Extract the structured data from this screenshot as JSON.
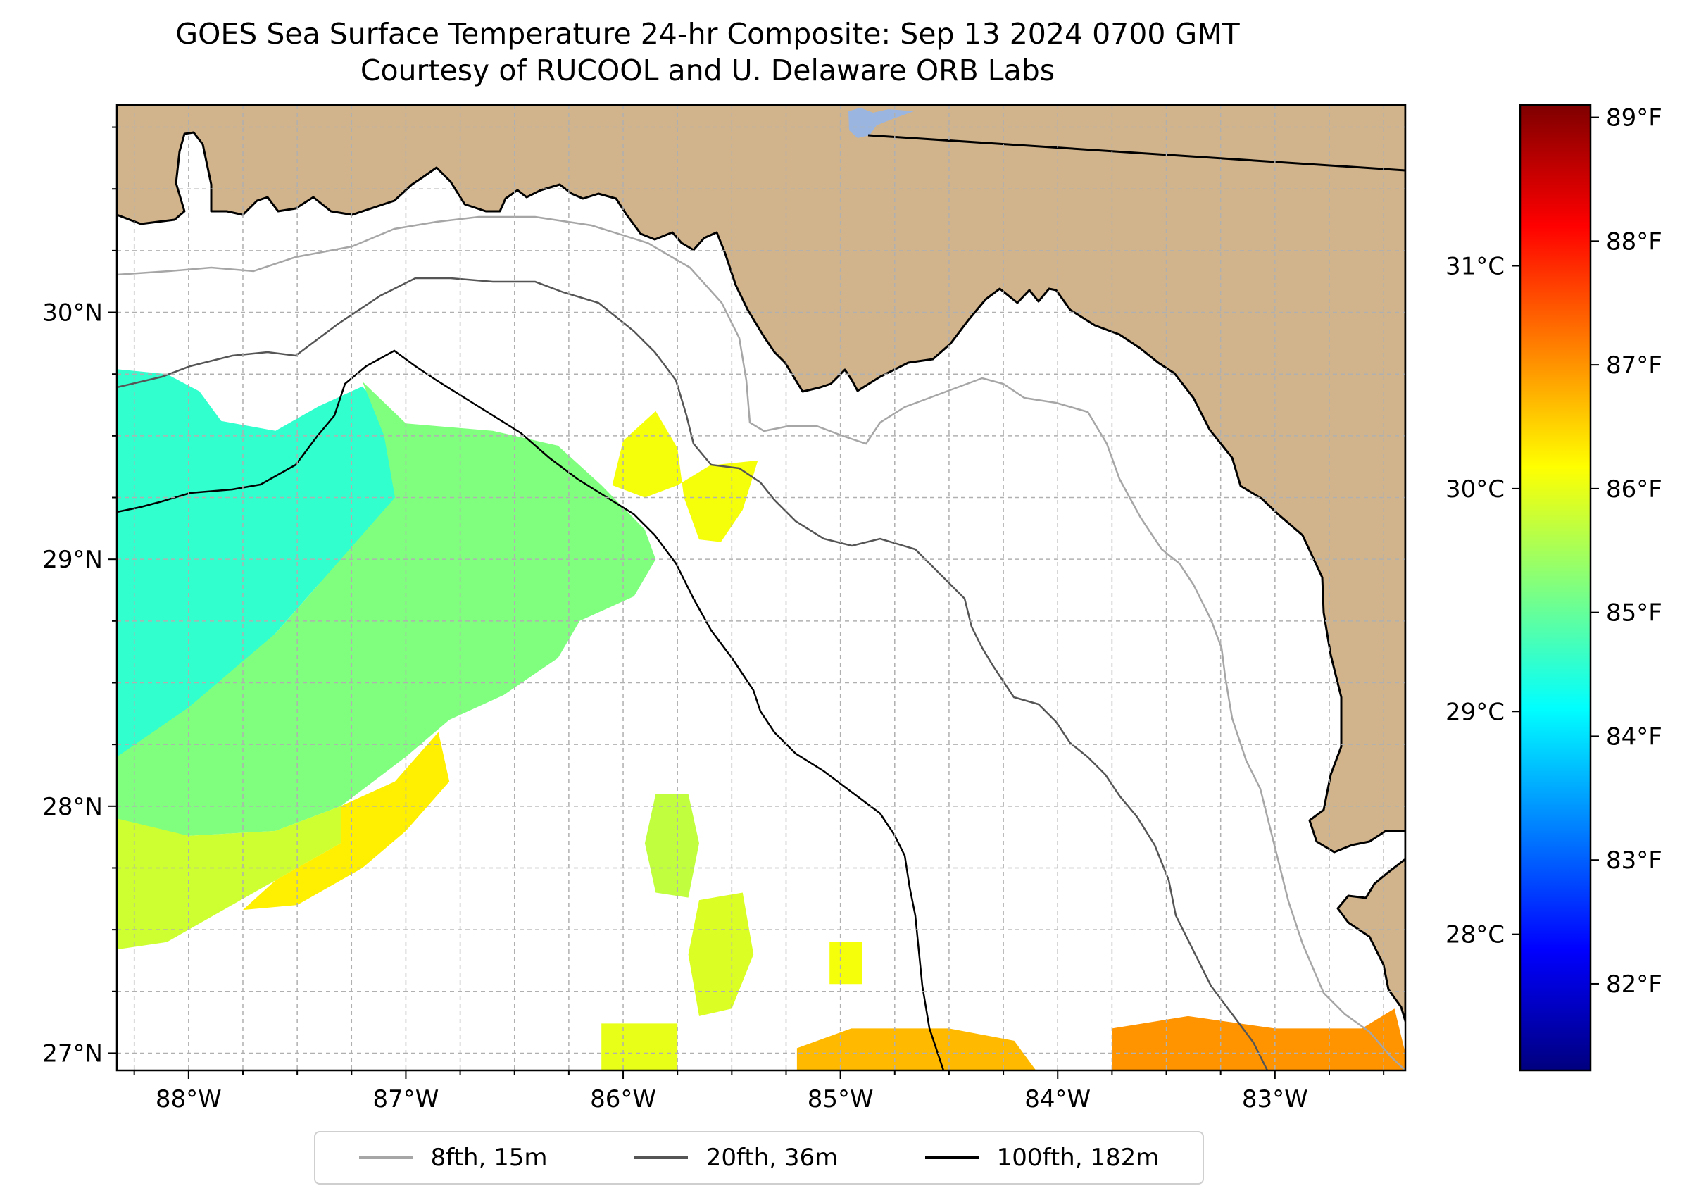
{
  "title": {
    "line1": "GOES Sea Surface Temperature 24-hr Composite: Sep 13 2024 0700 GMT",
    "line2": "Courtesy of RUCOOL and U. Delaware ORB Labs"
  },
  "map": {
    "lon_range": [
      -88.33,
      -82.4
    ],
    "lat_range": [
      26.93,
      30.84
    ],
    "lon_ticks": [
      {
        "value": -88,
        "label": "88°W"
      },
      {
        "value": -87,
        "label": "87°W"
      },
      {
        "value": -86,
        "label": "86°W"
      },
      {
        "value": -85,
        "label": "85°W"
      },
      {
        "value": -84,
        "label": "84°W"
      },
      {
        "value": -83,
        "label": "83°W"
      }
    ],
    "lat_ticks": [
      {
        "value": 27,
        "label": "27°N"
      },
      {
        "value": 28,
        "label": "28°N"
      },
      {
        "value": 29,
        "label": "29°N"
      },
      {
        "value": 30,
        "label": "30°N"
      }
    ],
    "grid": true,
    "land_color": "#d2b48c",
    "lake_color": "#9ab5e0"
  },
  "colorbar": {
    "celsius_ticks": [
      {
        "value": 31,
        "label": "31°C"
      },
      {
        "value": 30,
        "label": "30°C"
      },
      {
        "value": 29,
        "label": "29°C"
      },
      {
        "value": 28,
        "label": "28°C"
      }
    ],
    "fahrenheit_ticks": [
      {
        "value": 89,
        "label": "89°F"
      },
      {
        "value": 88,
        "label": "88°F"
      },
      {
        "value": 87,
        "label": "87°F"
      },
      {
        "value": 86,
        "label": "86°F"
      },
      {
        "value": 85,
        "label": "85°F"
      },
      {
        "value": 84,
        "label": "84°F"
      },
      {
        "value": 83,
        "label": "83°F"
      },
      {
        "value": 82,
        "label": "82°F"
      }
    ],
    "range_f": [
      81.3,
      89.1
    ],
    "colormap": "jet"
  },
  "legend": {
    "placement": "bottom-center",
    "items": [
      {
        "label": "8fth, 15m",
        "color": "#a6a6a6"
      },
      {
        "label": "20fth, 36m",
        "color": "#555555"
      },
      {
        "label": "100fth, 182m",
        "color": "#000000"
      }
    ]
  },
  "sst_patches": [
    {
      "temp_f": 84.6,
      "points": [
        [
          -88.33,
          29.77
        ],
        [
          -88.1,
          29.75
        ],
        [
          -87.95,
          29.68
        ],
        [
          -87.85,
          29.56
        ],
        [
          -87.6,
          29.52
        ],
        [
          -87.4,
          29.62
        ],
        [
          -87.2,
          29.7
        ],
        [
          -87.05,
          29.55
        ],
        [
          -86.9,
          29.48
        ],
        [
          -86.6,
          29.5
        ],
        [
          -86.4,
          29.38
        ],
        [
          -86.9,
          29.25
        ],
        [
          -87.1,
          29.1
        ],
        [
          -87.4,
          28.9
        ],
        [
          -87.7,
          28.6
        ],
        [
          -88.0,
          28.35
        ],
        [
          -88.33,
          28.2
        ]
      ]
    },
    {
      "temp_f": 85.2,
      "points": [
        [
          -87.2,
          29.72
        ],
        [
          -87.0,
          29.55
        ],
        [
          -86.6,
          29.52
        ],
        [
          -86.3,
          29.46
        ],
        [
          -86.1,
          29.3
        ],
        [
          -85.9,
          29.12
        ],
        [
          -85.85,
          29.0
        ],
        [
          -85.95,
          28.85
        ],
        [
          -86.2,
          28.75
        ],
        [
          -86.3,
          28.6
        ],
        [
          -86.55,
          28.45
        ],
        [
          -86.8,
          28.35
        ],
        [
          -87.0,
          28.2
        ],
        [
          -87.3,
          28.0
        ],
        [
          -87.6,
          27.9
        ],
        [
          -88.0,
          27.88
        ],
        [
          -88.33,
          27.9
        ],
        [
          -88.33,
          28.2
        ],
        [
          -88.0,
          28.4
        ],
        [
          -87.6,
          28.7
        ],
        [
          -87.3,
          29.0
        ],
        [
          -87.05,
          29.25
        ],
        [
          -87.1,
          29.5
        ]
      ]
    },
    {
      "temp_f": 85.8,
      "points": [
        [
          -88.33,
          27.95
        ],
        [
          -88.0,
          27.88
        ],
        [
          -87.6,
          27.9
        ],
        [
          -87.3,
          28.0
        ],
        [
          -87.05,
          28.1
        ],
        [
          -86.85,
          28.3
        ],
        [
          -86.95,
          28.05
        ],
        [
          -87.3,
          27.85
        ],
        [
          -87.6,
          27.7
        ],
        [
          -87.9,
          27.55
        ],
        [
          -88.1,
          27.45
        ],
        [
          -88.33,
          27.42
        ]
      ]
    },
    {
      "temp_f": 86.3,
      "points": [
        [
          -87.3,
          28.0
        ],
        [
          -87.05,
          28.1
        ],
        [
          -86.85,
          28.3
        ],
        [
          -86.8,
          28.1
        ],
        [
          -87.0,
          27.9
        ],
        [
          -87.2,
          27.75
        ],
        [
          -87.5,
          27.6
        ],
        [
          -87.75,
          27.58
        ],
        [
          -87.6,
          27.7
        ],
        [
          -87.3,
          27.85
        ]
      ]
    },
    {
      "temp_f": 86.1,
      "points": [
        [
          -86.0,
          29.48
        ],
        [
          -85.85,
          29.6
        ],
        [
          -85.75,
          29.45
        ],
        [
          -85.72,
          29.25
        ],
        [
          -85.65,
          29.08
        ],
        [
          -85.55,
          29.07
        ],
        [
          -85.45,
          29.2
        ],
        [
          -85.38,
          29.4
        ],
        [
          -85.6,
          29.38
        ],
        [
          -85.75,
          29.3
        ],
        [
          -85.9,
          29.25
        ],
        [
          -86.05,
          29.3
        ]
      ]
    },
    {
      "temp_f": 85.7,
      "points": [
        [
          -85.85,
          28.05
        ],
        [
          -85.7,
          28.05
        ],
        [
          -85.65,
          27.85
        ],
        [
          -85.7,
          27.63
        ],
        [
          -85.85,
          27.65
        ],
        [
          -85.9,
          27.85
        ]
      ]
    },
    {
      "temp_f": 85.9,
      "points": [
        [
          -85.65,
          27.62
        ],
        [
          -85.45,
          27.65
        ],
        [
          -85.4,
          27.4
        ],
        [
          -85.5,
          27.18
        ],
        [
          -85.65,
          27.15
        ],
        [
          -85.7,
          27.4
        ]
      ]
    },
    {
      "temp_f": 86.0,
      "points": [
        [
          -86.1,
          27.12
        ],
        [
          -85.75,
          27.12
        ],
        [
          -85.75,
          26.93
        ],
        [
          -86.1,
          26.93
        ]
      ]
    },
    {
      "temp_f": 86.1,
      "points": [
        [
          -85.05,
          27.45
        ],
        [
          -84.9,
          27.45
        ],
        [
          -84.9,
          27.28
        ],
        [
          -85.05,
          27.28
        ]
      ]
    },
    {
      "temp_f": 86.7,
      "points": [
        [
          -85.2,
          27.02
        ],
        [
          -84.95,
          27.1
        ],
        [
          -84.5,
          27.1
        ],
        [
          -84.2,
          27.05
        ],
        [
          -84.1,
          26.93
        ],
        [
          -85.2,
          26.93
        ]
      ]
    },
    {
      "temp_f": 87.0,
      "points": [
        [
          -83.75,
          27.1
        ],
        [
          -83.4,
          27.15
        ],
        [
          -83.0,
          27.1
        ],
        [
          -82.6,
          27.1
        ],
        [
          -82.45,
          27.18
        ],
        [
          -82.4,
          27.0
        ],
        [
          -82.4,
          26.93
        ],
        [
          -83.75,
          26.93
        ]
      ]
    }
  ]
}
